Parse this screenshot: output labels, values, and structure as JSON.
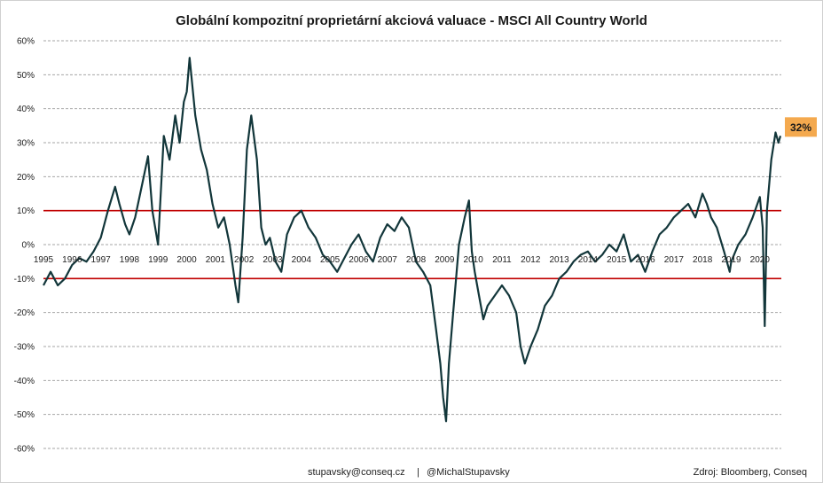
{
  "chart_data": {
    "type": "line",
    "title": "Globální kompozitní proprietární akciová valuace - MSCI All Country World",
    "xlabel": "",
    "ylabel": "",
    "x_range": [
      1995.0,
      2020.75
    ],
    "ylim": [
      -60,
      60
    ],
    "y_ticks": [
      "60%",
      "50%",
      "40%",
      "30%",
      "20%",
      "10%",
      "0%",
      "-10%",
      "-20%",
      "-30%",
      "-40%",
      "-50%",
      "-60%"
    ],
    "y_tick_values": [
      60,
      50,
      40,
      30,
      20,
      10,
      0,
      -10,
      -20,
      -30,
      -40,
      -50,
      -60
    ],
    "x_ticks": [
      "1995",
      "1996",
      "1997",
      "1998",
      "1999",
      "2000",
      "2001",
      "2002",
      "2003",
      "2004",
      "2005",
      "2006",
      "2007",
      "2008",
      "2009",
      "2010",
      "2011",
      "2012",
      "2013",
      "2014",
      "2015",
      "2016",
      "2017",
      "2018",
      "2019",
      "2020"
    ],
    "x_tick_values": [
      1995,
      1996,
      1997,
      1998,
      1999,
      2000,
      2001,
      2002,
      2003,
      2004,
      2005,
      2006,
      2007,
      2008,
      2009,
      2010,
      2011,
      2012,
      2013,
      2014,
      2015,
      2016,
      2017,
      2018,
      2019,
      2020
    ],
    "grid": "horizontal-dashed",
    "legend": "none",
    "reference_lines": [
      10,
      -10
    ],
    "colors": {
      "line": "#12363a",
      "reference": "#c00000",
      "badge": "#f4a94e",
      "grid": "#a6a6a6"
    },
    "series": [
      {
        "x": [
          1995.0,
          1995.25,
          1995.5,
          1995.75,
          1996.0,
          1996.25,
          1996.5,
          1996.75,
          1997.0,
          1997.25,
          1997.5,
          1997.65,
          1997.85,
          1998.0,
          1998.2,
          1998.45,
          1998.65,
          1998.8,
          1999.0,
          1999.2,
          1999.4,
          1999.6,
          1999.75,
          1999.9,
          2000.0,
          2000.1,
          2000.3,
          2000.5,
          2000.7,
          2000.9,
          2001.1,
          2001.3,
          2001.5,
          2001.7,
          2001.8,
          2001.95,
          2002.1,
          2002.25,
          2002.45,
          2002.6,
          2002.75,
          2002.9,
          2003.1,
          2003.3,
          2003.5,
          2003.75,
          2004.0,
          2004.25,
          2004.5,
          2004.75,
          2005.0,
          2005.25,
          2005.5,
          2005.75,
          2006.0,
          2006.25,
          2006.5,
          2006.75,
          2007.0,
          2007.25,
          2007.5,
          2007.75,
          2008.0,
          2008.25,
          2008.5,
          2008.7,
          2008.85,
          2008.95,
          2009.05,
          2009.15,
          2009.3,
          2009.5,
          2009.7,
          2009.85,
          2009.95,
          2010.05,
          2010.2,
          2010.35,
          2010.5,
          2010.75,
          2011.0,
          2011.25,
          2011.5,
          2011.65,
          2011.8,
          2012.0,
          2012.25,
          2012.5,
          2012.75,
          2013.0,
          2013.25,
          2013.5,
          2013.75,
          2014.0,
          2014.25,
          2014.5,
          2014.75,
          2015.0,
          2015.25,
          2015.5,
          2015.75,
          2016.0,
          2016.25,
          2016.5,
          2016.75,
          2017.0,
          2017.25,
          2017.5,
          2017.75,
          2018.0,
          2018.15,
          2018.3,
          2018.5,
          2018.75,
          2018.95,
          2019.0,
          2019.25,
          2019.5,
          2019.75,
          2020.0,
          2020.1,
          2020.17,
          2020.25,
          2020.4,
          2020.55,
          2020.65,
          2020.72
        ],
        "y": [
          -12,
          -8,
          -12,
          -10,
          -6,
          -4,
          -5,
          -2,
          2,
          10,
          17,
          12,
          6,
          3,
          8,
          18,
          26,
          10,
          0,
          32,
          25,
          38,
          30,
          42,
          45,
          55,
          38,
          28,
          22,
          12,
          5,
          8,
          0,
          -12,
          -17,
          2,
          28,
          38,
          25,
          5,
          0,
          2,
          -5,
          -8,
          3,
          8,
          10,
          5,
          2,
          -3,
          -5,
          -8,
          -4,
          0,
          3,
          -2,
          -5,
          2,
          6,
          4,
          8,
          5,
          -5,
          -8,
          -12,
          -25,
          -35,
          -45,
          -52,
          -35,
          -20,
          0,
          8,
          13,
          -2,
          -8,
          -15,
          -22,
          -18,
          -15,
          -12,
          -15,
          -20,
          -30,
          -35,
          -30,
          -25,
          -18,
          -15,
          -10,
          -8,
          -5,
          -3,
          -2,
          -5,
          -3,
          0,
          -2,
          3,
          -5,
          -3,
          -8,
          -2,
          3,
          5,
          8,
          10,
          12,
          8,
          15,
          12,
          8,
          5,
          -2,
          -8,
          -5,
          0,
          3,
          8,
          14,
          5,
          -24,
          10,
          25,
          33,
          30,
          32
        ]
      }
    ],
    "annotations": [
      "32%"
    ],
    "footer": {
      "contact": "stupavsky@conseq.cz",
      "separator": "|",
      "handle": "@MichalStupavsky",
      "source": "Zdroj: Bloomberg, Conseq"
    }
  }
}
